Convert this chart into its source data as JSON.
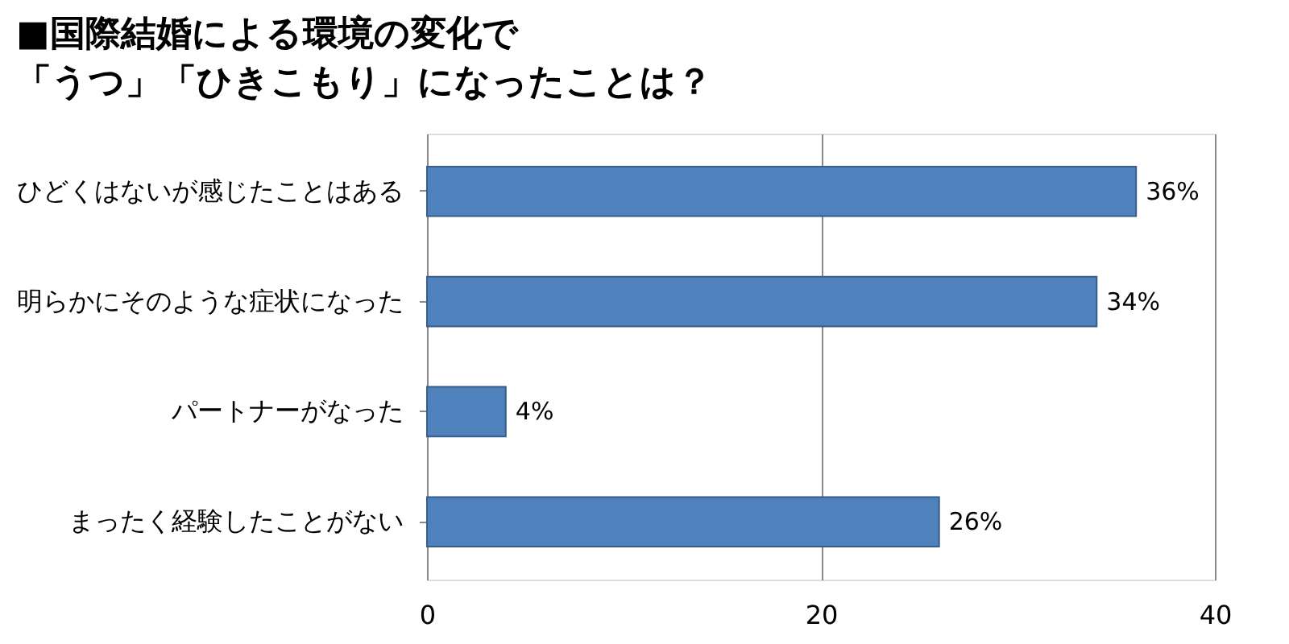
{
  "chart_data": {
    "type": "bar",
    "orientation": "horizontal",
    "title": "■国際結婚による環境の変化で",
    "subtitle": "「うつ」「ひきこもり」になったことは？",
    "categories": [
      "ひどくはないが感じたことはある",
      "明らかにそのような症状になった",
      "パートナーがなった",
      "まったく経験したことがない"
    ],
    "values": [
      36,
      34,
      4,
      26
    ],
    "value_labels": [
      "36%",
      "34%",
      "4%",
      "26%"
    ],
    "color": "#4f81bd",
    "xlim": [
      0,
      40
    ],
    "xticks": [
      0,
      20,
      40
    ],
    "grid": "x"
  }
}
